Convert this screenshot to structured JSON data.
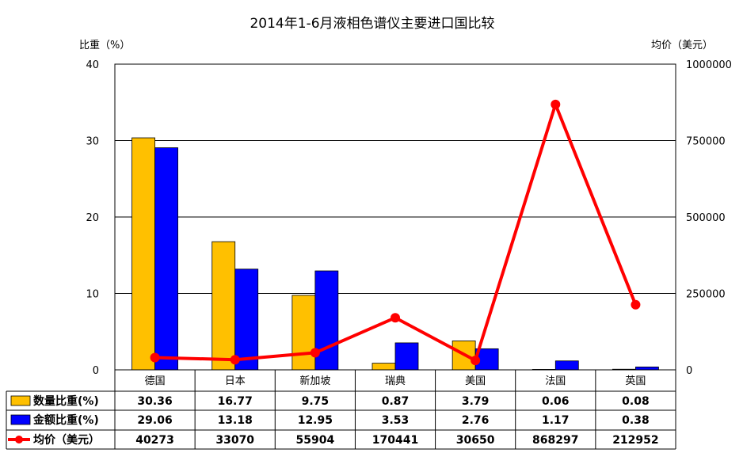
{
  "chart_data": {
    "type": "bar+line",
    "title": "2014年1-6月液相色谱仪主要进口国比较",
    "ylabel_left": "比重（%）",
    "ylabel_right": "均价（美元）",
    "ylim_left": [
      0,
      40
    ],
    "ylim_right": [
      0,
      1000000
    ],
    "yticks_left": [
      "0",
      "10",
      "20",
      "30",
      "40"
    ],
    "yticks_right": [
      "0",
      "250000",
      "500000",
      "750000",
      "1000000"
    ],
    "categories": [
      "德国",
      "日本",
      "新加坡",
      "瑞典",
      "美国",
      "法国",
      "英国"
    ],
    "grid": true,
    "legend": "table-left",
    "series": [
      {
        "name": "数量比重(%)",
        "kind": "bar",
        "axis": "left",
        "color": "#FFC000",
        "values": [
          30.36,
          16.77,
          9.75,
          0.87,
          3.79,
          0.06,
          0.08
        ],
        "labels": [
          "30.36",
          "16.77",
          "9.75",
          "0.87",
          "3.79",
          "0.06",
          "0.08"
        ]
      },
      {
        "name": "金额比重(%)",
        "kind": "bar",
        "axis": "left",
        "color": "#0000FF",
        "values": [
          29.06,
          13.18,
          12.95,
          3.53,
          2.76,
          1.17,
          0.38
        ],
        "labels": [
          "29.06",
          "13.18",
          "12.95",
          "3.53",
          "2.76",
          "1.17",
          "0.38"
        ]
      },
      {
        "name": "均价（美元）",
        "kind": "line",
        "axis": "right",
        "color": "#FF0000",
        "values": [
          40273,
          33070,
          55904,
          170441,
          30650,
          868297,
          212952
        ],
        "labels": [
          "40273",
          "33070",
          "55904",
          "170441",
          "30650",
          "868297",
          "212952"
        ]
      }
    ]
  }
}
